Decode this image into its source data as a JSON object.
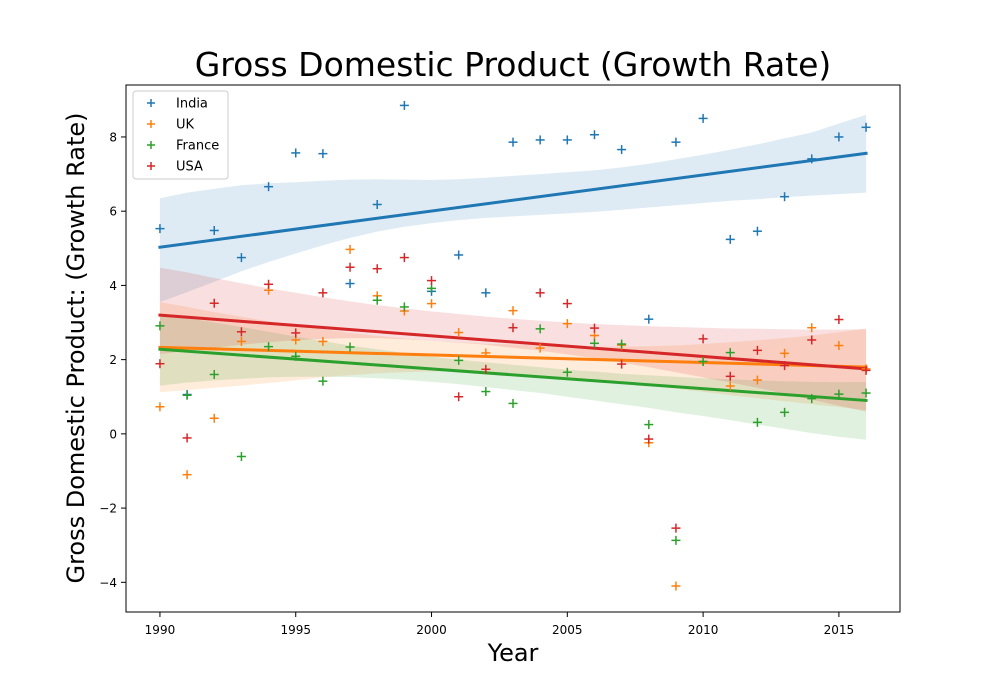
{
  "chart_data": {
    "type": "scatter",
    "title": "Gross Domestic Product (Growth Rate)",
    "xlabel": "Year",
    "ylabel": "Gross Domestic Product: (Growth Rate)",
    "xlim": [
      1988.75,
      2017.25
    ],
    "ylim": [
      -4.8,
      9.4
    ],
    "xticks": [
      1990,
      1995,
      2000,
      2005,
      2010,
      2015
    ],
    "yticks": [
      -4,
      -2,
      0,
      2,
      4,
      6,
      8
    ],
    "ytick_labels": [
      "−4",
      "−2",
      "0",
      "2",
      "4",
      "6",
      "8"
    ],
    "grid": false,
    "legend_position": "top-left",
    "marker": "+",
    "x": [
      1990,
      1991,
      1992,
      1993,
      1994,
      1995,
      1996,
      1997,
      1998,
      1999,
      2000,
      2001,
      2002,
      2003,
      2004,
      2005,
      2006,
      2007,
      2008,
      2009,
      2010,
      2011,
      2012,
      2013,
      2014,
      2015,
      2016
    ],
    "series": [
      {
        "name": "India",
        "color": "#1f77b4",
        "values": [
          5.53,
          1.06,
          5.48,
          4.75,
          6.66,
          7.57,
          7.55,
          4.05,
          6.18,
          8.85,
          3.84,
          4.82,
          3.8,
          7.86,
          7.92,
          7.92,
          8.06,
          7.66,
          3.09,
          7.86,
          8.5,
          5.24,
          5.46,
          6.39,
          7.41,
          8.0,
          8.26
        ],
        "trend": [
          5.03,
          7.56
        ],
        "ci_upper": [
          6.35,
          6.5,
          6.6,
          6.7,
          6.75,
          6.78,
          6.82,
          6.85,
          6.86,
          6.85,
          6.84,
          6.86,
          6.9,
          6.95,
          7.0,
          7.05,
          7.1,
          7.18,
          7.28,
          7.4,
          7.52,
          7.66,
          7.8,
          7.96,
          8.12,
          8.36,
          8.6
        ],
        "ci_lower": [
          3.55,
          3.82,
          4.1,
          4.38,
          4.63,
          4.86,
          5.08,
          5.28,
          5.45,
          5.58,
          5.68,
          5.76,
          5.82,
          5.86,
          5.9,
          5.94,
          5.98,
          6.04,
          6.1,
          6.16,
          6.22,
          6.28,
          6.32,
          6.38,
          6.42,
          6.46,
          6.5
        ]
      },
      {
        "name": "UK",
        "color": "#ff7f0e",
        "values": [
          0.73,
          -1.1,
          0.42,
          2.49,
          3.87,
          2.53,
          2.49,
          4.97,
          3.72,
          3.31,
          3.51,
          2.73,
          2.18,
          3.32,
          2.31,
          2.97,
          2.65,
          2.39,
          -0.24,
          -4.1,
          1.95,
          1.29,
          1.45,
          2.17,
          2.86,
          2.38,
          1.75
        ],
        "trend": [
          2.33,
          1.8
        ],
        "ci_upper": [
          3.55,
          3.42,
          3.28,
          3.16,
          3.03,
          2.92,
          2.82,
          2.72,
          2.64,
          2.57,
          2.51,
          2.47,
          2.43,
          2.41,
          2.38,
          2.36,
          2.35,
          2.35,
          2.36,
          2.38,
          2.42,
          2.47,
          2.52,
          2.58,
          2.65,
          2.74,
          2.84
        ],
        "ci_lower": [
          1.12,
          1.18,
          1.24,
          1.3,
          1.37,
          1.44,
          1.52,
          1.58,
          1.63,
          1.66,
          1.68,
          1.68,
          1.66,
          1.63,
          1.58,
          1.52,
          1.46,
          1.38,
          1.3,
          1.22,
          1.13,
          1.04,
          0.96,
          0.88,
          0.8,
          0.72,
          0.64
        ]
      },
      {
        "name": "France",
        "color": "#2ca02c",
        "values": [
          2.91,
          1.04,
          1.6,
          -0.61,
          2.35,
          2.09,
          1.42,
          2.34,
          3.6,
          3.42,
          3.92,
          1.98,
          1.14,
          0.82,
          2.83,
          1.66,
          2.44,
          2.42,
          0.25,
          -2.87,
          1.95,
          2.19,
          0.31,
          0.58,
          0.95,
          1.07,
          1.1
        ],
        "trend": [
          2.28,
          0.9
        ],
        "ci_upper": [
          3.25,
          3.12,
          3.0,
          2.88,
          2.75,
          2.62,
          2.5,
          2.38,
          2.28,
          2.18,
          2.08,
          2.0,
          1.93,
          1.86,
          1.8,
          1.73,
          1.68,
          1.62,
          1.58,
          1.54,
          1.5,
          1.47,
          1.44,
          1.42,
          1.4,
          1.39,
          1.4
        ],
        "ci_lower": [
          1.3,
          1.38,
          1.44,
          1.48,
          1.52,
          1.54,
          1.54,
          1.53,
          1.5,
          1.46,
          1.4,
          1.34,
          1.26,
          1.18,
          1.1,
          1.0,
          0.9,
          0.8,
          0.7,
          0.58,
          0.48,
          0.37,
          0.25,
          0.14,
          0.02,
          -0.08,
          -0.16
        ]
      },
      {
        "name": "USA",
        "color": "#d62728",
        "values": [
          1.89,
          -0.11,
          3.52,
          2.75,
          4.03,
          2.72,
          3.8,
          4.49,
          4.45,
          4.75,
          4.13,
          1.0,
          1.74,
          2.86,
          3.8,
          3.51,
          2.85,
          1.88,
          -0.14,
          -2.54,
          2.56,
          1.55,
          2.25,
          1.84,
          2.53,
          3.08,
          1.71
        ],
        "trend": [
          3.2,
          1.75
        ],
        "ci_upper": [
          4.48,
          4.35,
          4.2,
          4.06,
          3.92,
          3.8,
          3.68,
          3.57,
          3.47,
          3.38,
          3.3,
          3.23,
          3.16,
          3.1,
          3.05,
          3.0,
          2.96,
          2.93,
          2.9,
          2.88,
          2.86,
          2.84,
          2.83,
          2.82,
          2.81,
          2.81,
          2.82
        ],
        "ci_lower": [
          2.15,
          2.24,
          2.32,
          2.4,
          2.47,
          2.52,
          2.56,
          2.58,
          2.58,
          2.55,
          2.51,
          2.46,
          2.4,
          2.32,
          2.24,
          2.14,
          2.04,
          1.92,
          1.8,
          1.66,
          1.52,
          1.38,
          1.24,
          1.08,
          0.92,
          0.76,
          0.6
        ]
      }
    ]
  }
}
